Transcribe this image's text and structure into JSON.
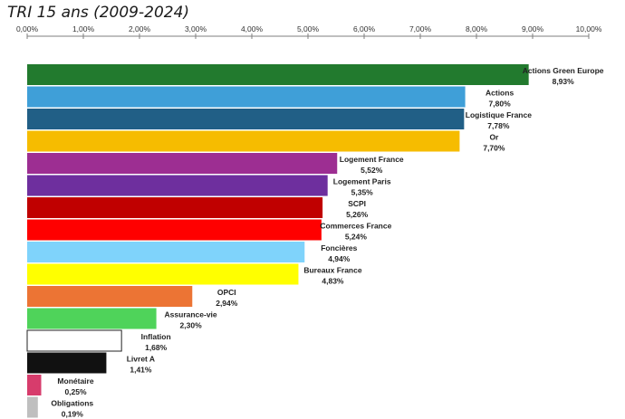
{
  "chart_data": {
    "type": "bar",
    "orientation": "horizontal",
    "title": "TRI 15 ans (2009-2024)",
    "xlabel": "",
    "ylabel": "",
    "xlim": [
      0,
      10
    ],
    "ticks": [
      "0,00%",
      "1,00%",
      "2,00%",
      "3,00%",
      "4,00%",
      "5,00%",
      "6,00%",
      "7,00%",
      "8,00%",
      "9,00%",
      "10,00%"
    ],
    "grid": false,
    "legend": "none",
    "bars": [
      {
        "label": "Actions Green Europe",
        "value": 8.93,
        "value_label": "8,93%",
        "color": "#227a2e"
      },
      {
        "label": "Actions",
        "value": 7.8,
        "value_label": "7,80%",
        "color": "#3f9fd8"
      },
      {
        "label": "Logistique France",
        "value": 7.78,
        "value_label": "7,78%",
        "color": "#215f86"
      },
      {
        "label": "Or",
        "value": 7.7,
        "value_label": "7,70%",
        "color": "#f6bc00"
      },
      {
        "label": "Logement France",
        "value": 5.52,
        "value_label": "5,52%",
        "color": "#9d2e92"
      },
      {
        "label": "Logement Paris",
        "value": 5.35,
        "value_label": "5,35%",
        "color": "#6e2f9e"
      },
      {
        "label": "SCPI",
        "value": 5.26,
        "value_label": "5,26%",
        "color": "#c00000"
      },
      {
        "label": "Commerces France",
        "value": 5.24,
        "value_label": "5,24%",
        "color": "#ff0000"
      },
      {
        "label": "Foncières",
        "value": 4.94,
        "value_label": "4,94%",
        "color": "#7fd3fb"
      },
      {
        "label": "Bureaux France",
        "value": 4.83,
        "value_label": "4,83%",
        "color": "#ffff00"
      },
      {
        "label": "OPCI",
        "value": 2.94,
        "value_label": "2,94%",
        "color": "#ec7434"
      },
      {
        "label": "Assurance-vie",
        "value": 2.3,
        "value_label": "2,30%",
        "color": "#4fd35a"
      },
      {
        "label": "Inflation",
        "value": 1.68,
        "value_label": "1,68%",
        "color": "#ffffff"
      },
      {
        "label": "Livret A",
        "value": 1.41,
        "value_label": "1,41%",
        "color": "#111111"
      },
      {
        "label": "Monétaire",
        "value": 0.25,
        "value_label": "0,25%",
        "color": "#d73c6c"
      },
      {
        "label": "Obligations",
        "value": 0.19,
        "value_label": "0,19%",
        "color": "#bfbfbf"
      }
    ]
  }
}
